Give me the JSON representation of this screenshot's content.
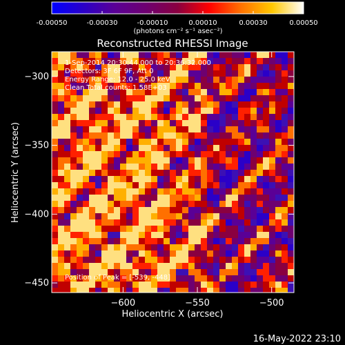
{
  "colorbar": {
    "ticks": [
      "-0.00050",
      "-0.00030",
      "-0.00010",
      "0.00010",
      "0.00030",
      "0.00050"
    ],
    "range": [
      -0.0005,
      0.0005
    ],
    "stops": [
      "#0000ff",
      "#2a00c8",
      "#5a0096",
      "#6e0070",
      "#8a0040",
      "#ff0000",
      "#ff7000",
      "#ffc800",
      "#ffffff"
    ]
  },
  "unit_label": "(photons cm⁻² s⁻¹ asec⁻²)",
  "chart_data": {
    "type": "heatmap",
    "title": "Reconstructed RHESSI Image",
    "xlabel": "Heliocentric X (arcsec)",
    "ylabel": "Heliocentric Y (arcsec)",
    "xlim": [
      -648,
      -485
    ],
    "ylim": [
      -457,
      -282
    ],
    "x_ticks": [
      -600,
      -550,
      -500
    ],
    "y_ticks": [
      -450,
      -400,
      -350,
      -300
    ],
    "x_tick_labels": [
      "−600",
      "−550",
      "−500"
    ],
    "y_tick_labels": [
      "−450",
      "−400",
      "−350",
      "−300"
    ],
    "annotations": [
      "1-Sep-2014 20:30:44.000 to 20:36:32.000",
      "Detectors: 3F 6F 9F, Att 0",
      "Energy Range: 12.0 - 25.0 keV",
      "Clean      Total counts: 1.58E+03"
    ],
    "peak_label": "Position of Peak = [-539, -448]",
    "peak": [
      -539,
      -448
    ]
  },
  "footer": "16-May-2022 23:10"
}
